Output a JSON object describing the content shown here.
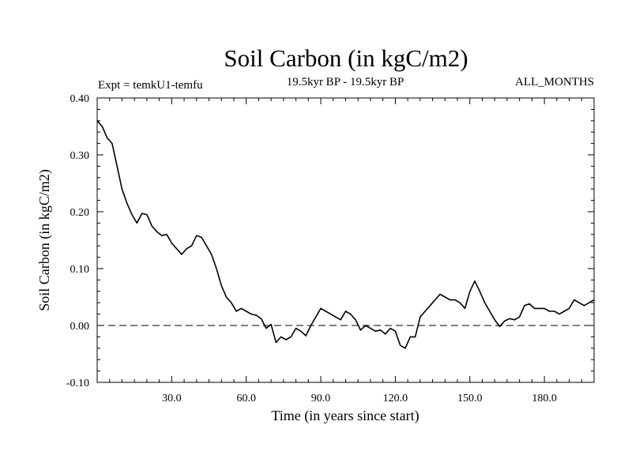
{
  "chart_data": {
    "type": "line",
    "title": "Soil Carbon (in kgC/m2)",
    "subtitle": "19.5kyr BP - 19.5kyr BP",
    "left_annotation": "Expt = temkU1-temfu",
    "right_annotation": "ALL_MONTHS",
    "xlabel": "Time (in years since start)",
    "ylabel": "Soil Carbon (in kgC/m2)",
    "xlim": [
      0,
      200
    ],
    "ylim": [
      -0.1,
      0.4
    ],
    "xticks": [
      30,
      60,
      90,
      120,
      150,
      180
    ],
    "xtick_labels": [
      "30.0",
      "60.0",
      "90.0",
      "120.0",
      "150.0",
      "180.0"
    ],
    "yticks": [
      -0.1,
      0.0,
      0.1,
      0.2,
      0.3,
      0.4
    ],
    "ytick_labels": [
      "-0.10",
      "0.00",
      "0.10",
      "0.20",
      "0.30",
      "0.40"
    ],
    "reference_line": {
      "y": 0.0,
      "style": "dashed"
    },
    "series": [
      {
        "name": "Soil Carbon",
        "x": [
          0,
          2,
          4,
          6,
          8,
          10,
          12,
          14,
          16,
          18,
          20,
          22,
          24,
          26,
          28,
          30,
          32,
          34,
          36,
          38,
          40,
          42,
          44,
          46,
          48,
          50,
          52,
          54,
          56,
          58,
          60,
          62,
          64,
          66,
          68,
          70,
          72,
          74,
          76,
          78,
          80,
          82,
          84,
          86,
          88,
          90,
          92,
          94,
          96,
          98,
          100,
          102,
          104,
          106,
          108,
          110,
          112,
          114,
          116,
          118,
          120,
          122,
          124,
          126,
          128,
          130,
          132,
          134,
          136,
          138,
          140,
          142,
          144,
          146,
          148,
          150,
          152,
          154,
          156,
          158,
          160,
          162,
          164,
          166,
          168,
          170,
          172,
          174,
          176,
          178,
          180,
          182,
          184,
          186,
          188,
          190,
          192,
          194,
          196,
          198,
          200
        ],
        "y": [
          0.36,
          0.35,
          0.33,
          0.32,
          0.28,
          0.24,
          0.215,
          0.195,
          0.18,
          0.197,
          0.195,
          0.175,
          0.165,
          0.158,
          0.16,
          0.145,
          0.135,
          0.125,
          0.135,
          0.14,
          0.158,
          0.155,
          0.14,
          0.125,
          0.1,
          0.07,
          0.05,
          0.04,
          0.025,
          0.03,
          0.025,
          0.02,
          0.018,
          0.012,
          -0.005,
          0.002,
          -0.03,
          -0.02,
          -0.025,
          -0.02,
          -0.005,
          -0.01,
          -0.018,
          0.0,
          0.015,
          0.03,
          0.025,
          0.02,
          0.015,
          0.01,
          0.025,
          0.02,
          0.01,
          -0.008,
          0.0,
          -0.005,
          -0.01,
          -0.008,
          -0.015,
          -0.005,
          -0.01,
          -0.035,
          -0.04,
          -0.02,
          -0.02,
          0.015,
          0.025,
          0.035,
          0.045,
          0.055,
          0.05,
          0.045,
          0.045,
          0.04,
          0.03,
          0.06,
          0.078,
          0.06,
          0.04,
          0.025,
          0.01,
          -0.002,
          0.008,
          0.012,
          0.01,
          0.015,
          0.035,
          0.038,
          0.03,
          0.03,
          0.03,
          0.025,
          0.025,
          0.02,
          0.025,
          0.03,
          0.045,
          0.04,
          0.035,
          0.04,
          0.045
        ]
      }
    ]
  }
}
